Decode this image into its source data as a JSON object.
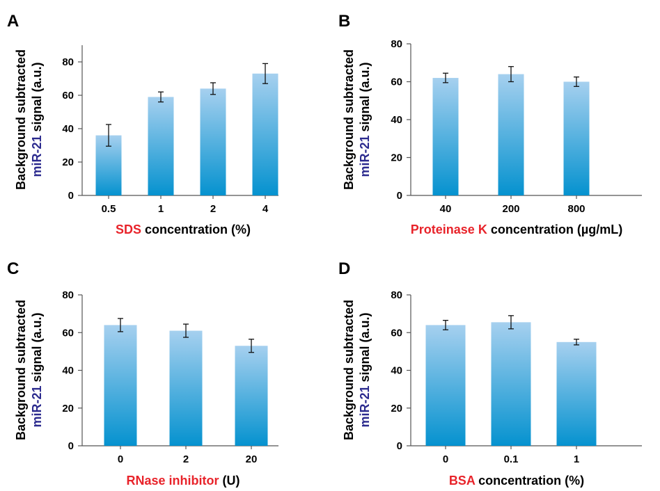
{
  "colors": {
    "bar_top": "#a6d0ef",
    "bar_bottom": "#0592cf",
    "highlight_red": "#e8232a",
    "highlight_blue": "#2b2a8e",
    "text": "#000000",
    "axis": "#555555"
  },
  "chart_data": [
    {
      "type": "bar",
      "panel": "A",
      "categories": [
        "0.5",
        "1",
        "2",
        "4"
      ],
      "values": [
        36,
        59,
        64,
        73
      ],
      "errors": [
        6.5,
        3,
        3.5,
        6
      ],
      "ylim": [
        0,
        90
      ],
      "yticks": [
        "0",
        "20",
        "40",
        "60",
        "80"
      ],
      "ylabel": {
        "line1": "Background subtracted",
        "line2_highlight": "miR-21",
        "line2_rest": " signal (a.u.)"
      },
      "xlabel": {
        "highlight": "SDS",
        "rest": " concentration (%)"
      }
    },
    {
      "type": "bar",
      "panel": "B",
      "categories": [
        "40",
        "200",
        "800"
      ],
      "values": [
        62,
        64,
        60
      ],
      "errors": [
        2.5,
        4,
        2.5
      ],
      "ylim": [
        0,
        80
      ],
      "yticks": [
        "0",
        "20",
        "40",
        "60",
        "80"
      ],
      "ylabel": {
        "line1": "Background subtracted",
        "line2_highlight": "miR-21",
        "line2_rest": " signal (a.u.)"
      },
      "xlabel": {
        "highlight": "Proteinase K",
        "rest": "  concentration (µg/mL)"
      }
    },
    {
      "type": "bar",
      "panel": "C",
      "categories": [
        "0",
        "2",
        "20"
      ],
      "values": [
        64,
        61,
        53
      ],
      "errors": [
        3.5,
        3.5,
        3.5
      ],
      "ylim": [
        0,
        80
      ],
      "yticks": [
        "0",
        "20",
        "40",
        "60",
        "80"
      ],
      "ylabel": {
        "line1": "Background subtracted",
        "line2_highlight": "miR-21",
        "line2_rest": " signal (a.u.)"
      },
      "xlabel": {
        "highlight": "RNase inhibitor",
        "rest": " (U)"
      }
    },
    {
      "type": "bar",
      "panel": "D",
      "categories": [
        "0",
        "0.1",
        "1"
      ],
      "values": [
        64,
        65.5,
        55
      ],
      "errors": [
        2.5,
        3.5,
        1.5
      ],
      "ylim": [
        0,
        80
      ],
      "yticks": [
        "0",
        "20",
        "40",
        "60",
        "80"
      ],
      "ylabel": {
        "line1": "Background subtracted",
        "line2_highlight": "miR-21",
        "line2_rest": " signal (a.u.)"
      },
      "xlabel": {
        "highlight": "BSA",
        "rest": " concentration (%)"
      }
    }
  ]
}
